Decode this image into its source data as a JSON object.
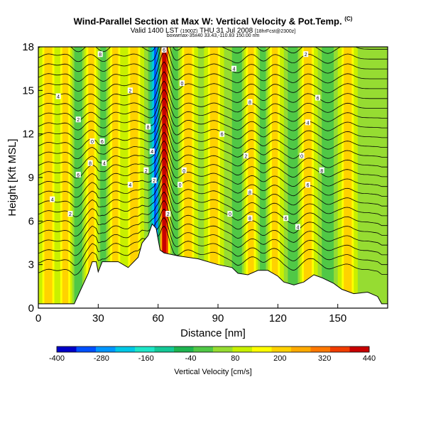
{
  "header": {
    "title": "Wind-Parallel Section at Max W: Vertical Velocity & Pot.Temp.",
    "title_mark": "(C)",
    "subtitle_main": "Valid 1400 LST",
    "subtitle_small1": "(1900Z)",
    "subtitle_date": "THU 31 Jul 2008",
    "subtitle_small2": "[18hrFcst@2300z]",
    "source_line": "boxwmax-35x40 33.43,-110.83 150.00 nm"
  },
  "chart_data": {
    "type": "heatmap",
    "title": "Wind-Parallel Section at Max W: Vertical Velocity & Pot.Temp.",
    "xlabel": "Distance [nm]",
    "ylabel": "Height [Kft MSL]",
    "xlim": [
      0,
      175
    ],
    "ylim": [
      0,
      18
    ],
    "x_ticks": [
      0,
      30,
      60,
      90,
      120,
      150
    ],
    "y_ticks": [
      0,
      3,
      6,
      9,
      12,
      15,
      18
    ],
    "colorbar": {
      "label": "Vertical Velocity [cm/s]",
      "tick_values": [
        -400,
        -280,
        -160,
        -40,
        80,
        200,
        320,
        440
      ],
      "colors": [
        "#0000c8",
        "#0050ff",
        "#0096ff",
        "#00c8e6",
        "#1ee6c8",
        "#14c896",
        "#1eb450",
        "#50c846",
        "#96dc32",
        "#c8f000",
        "#ffff00",
        "#ffd200",
        "#ffaa00",
        "#ff7800",
        "#f03c00",
        "#c80000"
      ]
    },
    "updraft_bands_nm": [
      5,
      14,
      26,
      38,
      48,
      63,
      75,
      88,
      107,
      118,
      135,
      155
    ],
    "downdraft_bands_nm": [
      20,
      33,
      58,
      68,
      100,
      113,
      128,
      145
    ],
    "strong_updraft_nm": 63,
    "strong_downdraft_nm": 59,
    "terrain_height_kft": [
      [
        0,
        0.3
      ],
      [
        18,
        0.3
      ],
      [
        22,
        1.5
      ],
      [
        25,
        2.4
      ],
      [
        27,
        3.2
      ],
      [
        29,
        3.2
      ],
      [
        30,
        2.5
      ],
      [
        32,
        3.2
      ],
      [
        40,
        3.2
      ],
      [
        45,
        2.8
      ],
      [
        50,
        3.5
      ],
      [
        52,
        4.5
      ],
      [
        55,
        5.0
      ],
      [
        57,
        5.8
      ],
      [
        59,
        5.5
      ],
      [
        61,
        4.0
      ],
      [
        63,
        3.8
      ],
      [
        70,
        3.6
      ],
      [
        80,
        3.4
      ],
      [
        90,
        3.0
      ],
      [
        97,
        2.8
      ],
      [
        100,
        2.4
      ],
      [
        105,
        2.3
      ],
      [
        110,
        2.6
      ],
      [
        115,
        2.6
      ],
      [
        120,
        2.2
      ],
      [
        123,
        1.8
      ],
      [
        128,
        1.6
      ],
      [
        133,
        1.8
      ],
      [
        138,
        2.3
      ],
      [
        142,
        2.1
      ],
      [
        148,
        1.7
      ],
      [
        152,
        1.3
      ],
      [
        158,
        1.0
      ],
      [
        165,
        1.1
      ],
      [
        170,
        0.8
      ],
      [
        172,
        0.3
      ],
      [
        175,
        0.3
      ]
    ],
    "isentrope_labels": [
      {
        "x": 31,
        "y": 17.5,
        "t": "8"
      },
      {
        "x": 63,
        "y": 17.8,
        "t": "6"
      },
      {
        "x": 98,
        "y": 16.5,
        "t": "4"
      },
      {
        "x": 134,
        "y": 17.5,
        "t": "2"
      },
      {
        "x": 10,
        "y": 14.6,
        "t": "4"
      },
      {
        "x": 46,
        "y": 15.0,
        "t": "2"
      },
      {
        "x": 72,
        "y": 15.5,
        "t": "0"
      },
      {
        "x": 106,
        "y": 14.2,
        "t": "8"
      },
      {
        "x": 140,
        "y": 14.5,
        "t": "6"
      },
      {
        "x": 20,
        "y": 13.0,
        "t": "2"
      },
      {
        "x": 55,
        "y": 12.5,
        "t": "8"
      },
      {
        "x": 92,
        "y": 12.0,
        "t": "6"
      },
      {
        "x": 135,
        "y": 12.8,
        "t": "4"
      },
      {
        "x": 27,
        "y": 11.5,
        "t": "0"
      },
      {
        "x": 32,
        "y": 11.5,
        "t": "6"
      },
      {
        "x": 57,
        "y": 10.8,
        "t": "4"
      },
      {
        "x": 104,
        "y": 10.5,
        "t": "2"
      },
      {
        "x": 132,
        "y": 10.5,
        "t": "0"
      },
      {
        "x": 26,
        "y": 10.0,
        "t": "8"
      },
      {
        "x": 33,
        "y": 10.0,
        "t": "4"
      },
      {
        "x": 54,
        "y": 9.5,
        "t": "2"
      },
      {
        "x": 73,
        "y": 9.5,
        "t": "0"
      },
      {
        "x": 142,
        "y": 9.5,
        "t": "8"
      },
      {
        "x": 20,
        "y": 9.2,
        "t": "6"
      },
      {
        "x": 46,
        "y": 8.5,
        "t": "4"
      },
      {
        "x": 58,
        "y": 8.8,
        "t": "2"
      },
      {
        "x": 71,
        "y": 8.5,
        "t": "0"
      },
      {
        "x": 106,
        "y": 8.0,
        "t": "8"
      },
      {
        "x": 135,
        "y": 8.5,
        "t": "6"
      },
      {
        "x": 7,
        "y": 7.5,
        "t": "4"
      },
      {
        "x": 65,
        "y": 6.5,
        "t": "2"
      },
      {
        "x": 96,
        "y": 6.5,
        "t": "0"
      },
      {
        "x": 106,
        "y": 6.2,
        "t": "8"
      },
      {
        "x": 124,
        "y": 6.2,
        "t": "6"
      },
      {
        "x": 130,
        "y": 5.6,
        "t": "4"
      },
      {
        "x": 16,
        "y": 6.5,
        "t": "2"
      }
    ]
  }
}
